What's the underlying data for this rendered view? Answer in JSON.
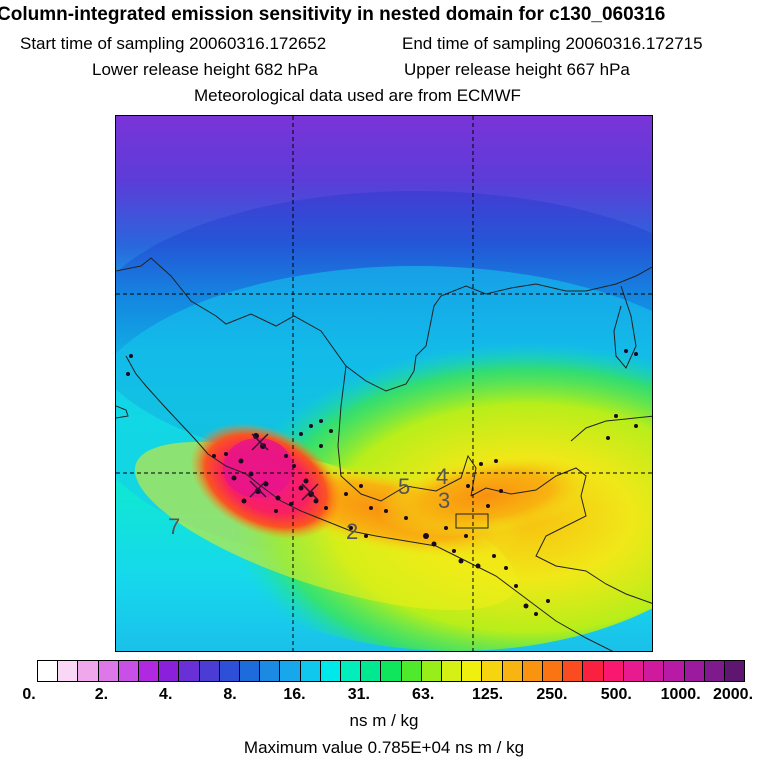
{
  "header": {
    "title": "Column-integrated emission sensitivity in nested domain for c130_060316",
    "start_time": "Start time of sampling 20060316.172652",
    "end_time": "End time of sampling 20060316.172715",
    "lower_height": "Lower release height  682 hPa",
    "upper_height": "Upper release height  667 hPa",
    "met_data": "Meteorological data used are from ECMWF"
  },
  "map": {
    "region_labels": [
      "7",
      "2",
      "5",
      "4",
      "3"
    ]
  },
  "colorbar": {
    "colors": [
      "#ffffff",
      "#f8d8f4",
      "#f0a8ec",
      "#dc78e8",
      "#c850e6",
      "#b028e0",
      "#8a20dc",
      "#6a30d8",
      "#4c3cd6",
      "#2e50d8",
      "#1e6cdc",
      "#1a8ae2",
      "#16a8ea",
      "#10c8ee",
      "#00e8ea",
      "#00eebc",
      "#00e890",
      "#10e65c",
      "#50ea2c",
      "#98ee18",
      "#d4f014",
      "#f0f010",
      "#f6d410",
      "#f8b410",
      "#fa9410",
      "#fa7414",
      "#fa4c20",
      "#fa2040",
      "#f81870",
      "#e81a90",
      "#d01a9e",
      "#b81aa6",
      "#9c1a9e",
      "#7e1a8c",
      "#5e1670"
    ],
    "tick_labels": [
      "0.",
      "2.",
      "4.",
      "8.",
      "16.",
      "31.",
      "63.",
      "125.",
      "250.",
      "500.",
      "1000.",
      "2000."
    ],
    "units": "ns m / kg"
  },
  "footer": {
    "max_value": "Maximum value  0.785E+04 ns m / kg"
  }
}
